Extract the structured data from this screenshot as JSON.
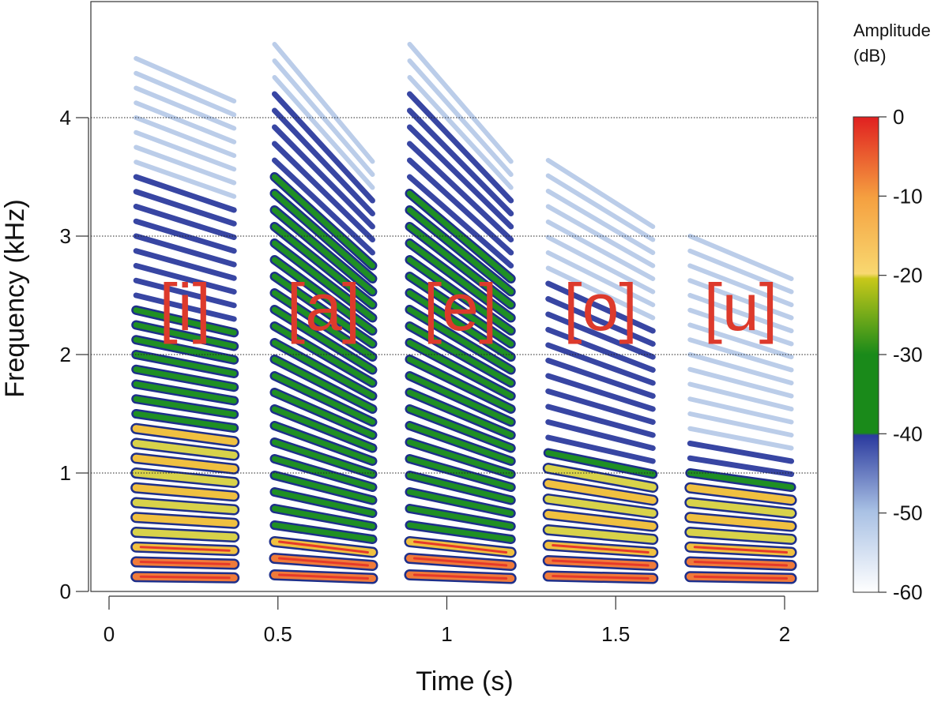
{
  "chart_data": {
    "type": "heatmap",
    "title": "",
    "xlabel": "Time (s)",
    "ylabel": "Frequency (kHz)",
    "xlim": [
      -0.02,
      2.1
    ],
    "ylim": [
      0,
      5
    ],
    "x_ticks": [
      "0",
      "0.5",
      "1",
      "1.5",
      "2"
    ],
    "y_ticks": [
      "0",
      "1",
      "2",
      "3",
      "4"
    ],
    "grid": "dotted horizontal lines at 1, 2, 3, 4 kHz",
    "colorbar": {
      "title_line1": "Amplitude",
      "title_line2": "(dB)",
      "range": [
        -60,
        0
      ],
      "ticks": [
        "0",
        "-10",
        "-20",
        "-30",
        "-40",
        "-50",
        "-60"
      ],
      "colors": {
        "-60": "#ffffff",
        "-50": "#a9c1e4",
        "-40": "#2b3a9e",
        "-30": "#1a8a1a",
        "-20": "#c8c81a",
        "-10": "#f5a040",
        "0": "#e02020"
      }
    },
    "vowels": [
      {
        "label": "[i]",
        "start": 0.08,
        "end": 0.37,
        "f0_start": 0.125,
        "f0_end": 0.115,
        "strong_up_to_khz": 1.4,
        "medium_up_to_khz": 2.4,
        "weak_up_to_khz": 3.5,
        "faint_up_to_khz": 4.5
      },
      {
        "label": "[a]",
        "start": 0.49,
        "end": 0.78,
        "f0_start": 0.14,
        "f0_end": 0.11,
        "strong_up_to_khz": 0.55,
        "medium_up_to_khz": 3.6,
        "weak_up_to_khz": 4.2,
        "faint_up_to_khz": 4.7
      },
      {
        "label": "[e]",
        "start": 0.89,
        "end": 1.19,
        "f0_start": 0.14,
        "f0_end": 0.11,
        "strong_up_to_khz": 0.55,
        "medium_up_to_khz": 3.5,
        "weak_up_to_khz": 4.2,
        "faint_up_to_khz": 4.7
      },
      {
        "label": "[o]",
        "start": 1.3,
        "end": 1.61,
        "f0_start": 0.13,
        "f0_end": 0.11,
        "strong_up_to_khz": 1.1,
        "medium_up_to_khz": 1.2,
        "weak_up_to_khz": 2.6,
        "faint_up_to_khz": 3.7
      },
      {
        "label": "[u]",
        "start": 1.72,
        "end": 2.02,
        "f0_start": 0.125,
        "f0_end": 0.11,
        "strong_up_to_khz": 0.95,
        "medium_up_to_khz": 1.0,
        "weak_up_to_khz": 1.3,
        "faint_up_to_khz": 3.0
      }
    ]
  }
}
